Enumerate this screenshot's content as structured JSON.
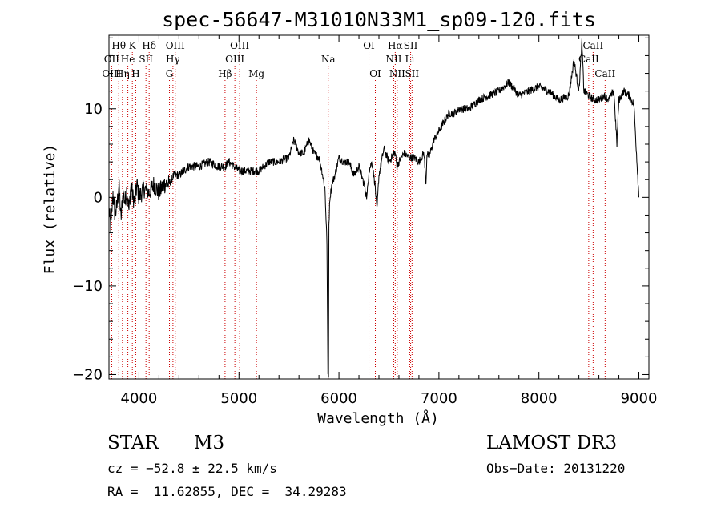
{
  "chart_data": {
    "type": "line",
    "title": "spec-56647-M31010N33M1_sp09-120.fits",
    "xlabel": "Wavelength (Å)",
    "ylabel": "Flux (relative)",
    "xlim": [
      3700,
      9100
    ],
    "ylim": [
      -20.5,
      18.3
    ],
    "xticks": [
      4000,
      5000,
      6000,
      7000,
      8000,
      9000
    ],
    "yticks": [
      -20,
      -10,
      0,
      10
    ],
    "xminor_step": 200,
    "yminor_step": 2,
    "grid": false,
    "series": [
      {
        "name": "spectrum",
        "x": [
          3700,
          3720,
          3740,
          3760,
          3780,
          3800,
          3820,
          3840,
          3860,
          3880,
          3900,
          3920,
          3940,
          3960,
          3980,
          4000,
          4050,
          4100,
          4150,
          4200,
          4250,
          4300,
          4350,
          4400,
          4500,
          4600,
          4700,
          4800,
          4860,
          4900,
          5000,
          5100,
          5200,
          5300,
          5400,
          5500,
          5550,
          5600,
          5650,
          5700,
          5750,
          5800,
          5830,
          5860,
          5880,
          5890,
          5893,
          5896,
          5900,
          5910,
          5930,
          5960,
          6000,
          6050,
          6100,
          6150,
          6200,
          6250,
          6280,
          6300,
          6330,
          6360,
          6380,
          6400,
          6450,
          6500,
          6550,
          6563,
          6580,
          6600,
          6650,
          6700,
          6750,
          6800,
          6850,
          6870,
          6880,
          6900,
          6950,
          7000,
          7050,
          7100,
          7150,
          7200,
          7300,
          7400,
          7500,
          7600,
          7700,
          7800,
          7900,
          8000,
          8100,
          8200,
          8300,
          8350,
          8400,
          8430,
          8450,
          8500,
          8550,
          8600,
          8650,
          8700,
          8750,
          8780,
          8800,
          8850,
          8900,
          8950,
          9000
        ],
        "y": [
          -1.5,
          -3.5,
          0.5,
          -2,
          -1,
          1.5,
          -2.5,
          0.5,
          -0.5,
          1,
          -1.5,
          1.5,
          0,
          -0.5,
          1.5,
          0,
          1,
          0.5,
          1.5,
          0.5,
          1.5,
          1.5,
          2.5,
          2.5,
          3.5,
          3.5,
          4,
          3.5,
          3.5,
          4,
          3,
          3,
          3,
          4,
          4,
          4.5,
          6.5,
          5,
          5,
          6.5,
          5,
          4.5,
          3,
          1,
          -5,
          -20,
          -14,
          -20,
          -3,
          0,
          1.5,
          2.5,
          4.5,
          4,
          4,
          2.5,
          3.5,
          1.5,
          0,
          3,
          4,
          1.5,
          -1.5,
          2.5,
          5.5,
          4,
          5,
          5,
          3.5,
          4,
          5,
          4.5,
          4.5,
          4,
          5,
          1.5,
          5,
          4.5,
          6.5,
          7.5,
          8.5,
          9.5,
          9.5,
          10,
          10,
          11,
          11.5,
          12,
          13,
          11.5,
          12,
          12.5,
          12,
          11,
          11.5,
          15.5,
          12,
          17.5,
          12,
          11.5,
          11,
          11,
          11.5,
          11,
          12,
          6,
          11,
          12,
          11.5,
          10.5,
          0
        ]
      }
    ],
    "spectral_lines": [
      {
        "label": "Hθ",
        "x": 3798,
        "row": 1
      },
      {
        "label": "K",
        "x": 3934,
        "row": 1
      },
      {
        "label": "Hδ",
        "x": 4102,
        "row": 1
      },
      {
        "label": "OIII",
        "x": 4363,
        "row": 1
      },
      {
        "label": "OIII",
        "x": 5007,
        "row": 1
      },
      {
        "label": "OI",
        "x": 6300,
        "row": 1
      },
      {
        "label": "Hα",
        "x": 6563,
        "row": 1
      },
      {
        "label": "SII",
        "x": 6717,
        "row": 1
      },
      {
        "label": "CaII",
        "x": 8542,
        "row": 1
      },
      {
        "label": "OII",
        "x": 3727,
        "row": 2
      },
      {
        "label": "He",
        "x": 3889,
        "row": 2
      },
      {
        "label": "SII",
        "x": 4070,
        "row": 2
      },
      {
        "label": "Hγ",
        "x": 4340,
        "row": 2
      },
      {
        "label": "OIII",
        "x": 4959,
        "row": 2
      },
      {
        "label": "NII",
        "x": 6548,
        "row": 2
      },
      {
        "label": "Li",
        "x": 6708,
        "row": 2
      },
      {
        "label": "CaII",
        "x": 8498,
        "row": 2
      },
      {
        "label": "OIII",
        "x": 3727,
        "row": 3
      },
      {
        "label": "Hη",
        "x": 3835,
        "row": 3
      },
      {
        "label": "H",
        "x": 3968,
        "row": 3
      },
      {
        "label": "G",
        "x": 4305,
        "row": 3
      },
      {
        "label": "Hβ",
        "x": 4861,
        "row": 3
      },
      {
        "label": "Mg",
        "x": 5175,
        "row": 3
      },
      {
        "label": "Na",
        "x": 5893,
        "row": 2
      },
      {
        "label": "OI",
        "x": 6364,
        "row": 3
      },
      {
        "label": "NII",
        "x": 6583,
        "row": 3
      },
      {
        "label": "SII",
        "x": 6731,
        "row": 3
      },
      {
        "label": "CaII",
        "x": 8662,
        "row": 3
      }
    ],
    "colors": {
      "spectrum": "#000000",
      "lines": "#cc0000",
      "axes": "#000000"
    }
  },
  "info": {
    "object_class": "STAR",
    "subclass": "M3",
    "survey": "LAMOST DR3",
    "cz": "cz = −52.8 ± 22.5 km/s",
    "obs_date": "Obs−Date: 20131220",
    "coords": "RA =  11.62855, DEC =  34.29283"
  }
}
